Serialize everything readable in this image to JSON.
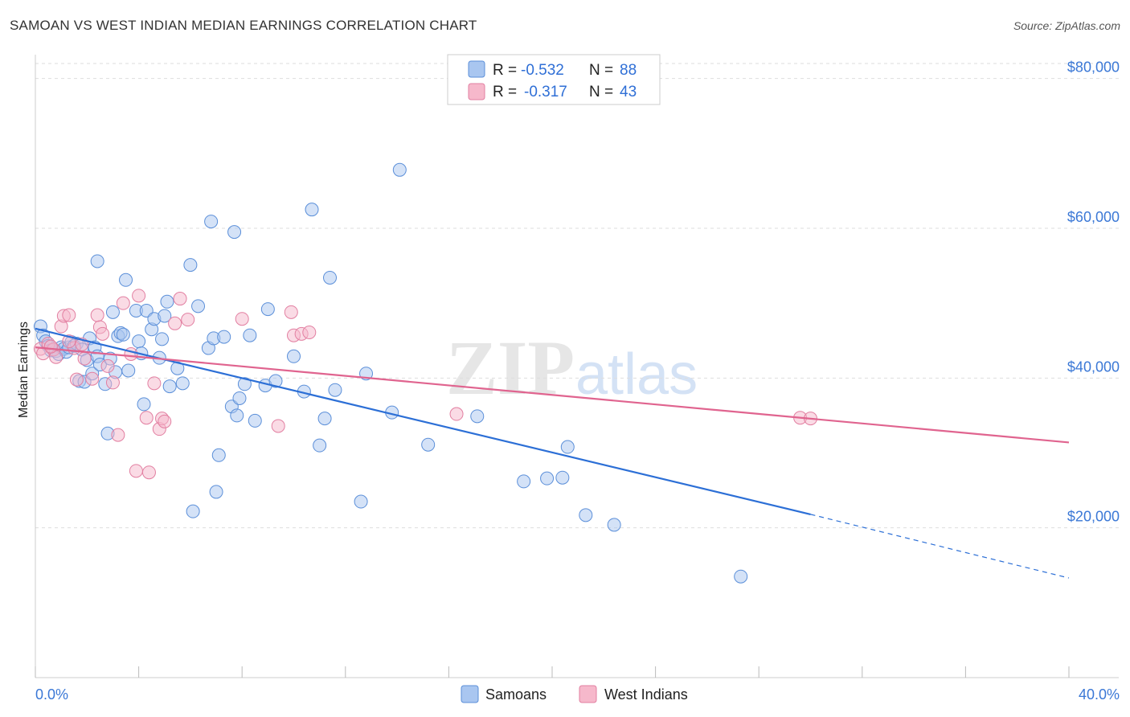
{
  "header": {
    "title": "SAMOAN VS WEST INDIAN MEDIAN EARNINGS CORRELATION CHART",
    "source": "Source: ZipAtlas.com"
  },
  "watermark": {
    "zip": "ZIP",
    "atlas": "atlas"
  },
  "legend": {
    "rows": [
      {
        "r_label": "R =",
        "r_value": "-0.532",
        "n_label": "N =",
        "n_value": "88"
      },
      {
        "r_label": "R =",
        "r_value": "-0.317",
        "n_label": "N =",
        "n_value": "43"
      }
    ]
  },
  "bottom_legend": {
    "items": [
      "Samoans",
      "West Indians"
    ]
  },
  "colors": {
    "samoans_fill": "#a9c6f0",
    "samoans_stroke": "#5b8fd9",
    "samoans_line": "#2c6fd6",
    "westindians_fill": "#f6b8cb",
    "westindians_stroke": "#e27fa1",
    "westindians_line": "#e0648f",
    "tick_text": "#3b78d6",
    "grid": "#dddddd"
  },
  "chart_data": {
    "type": "scatter",
    "title": "SAMOAN VS WEST INDIAN MEDIAN EARNINGS CORRELATION CHART",
    "xlabel": "",
    "ylabel": "Median Earnings",
    "xlim": [
      0,
      40
    ],
    "ylim": [
      0,
      82000
    ],
    "x_tick_labels": [
      "0.0%",
      "40.0%"
    ],
    "y_ticks": [
      {
        "value": 20000,
        "label": "$20,000"
      },
      {
        "value": 40000,
        "label": "$40,000"
      },
      {
        "value": 60000,
        "label": "$60,000"
      },
      {
        "value": 80000,
        "label": "$80,000"
      }
    ],
    "grid": true,
    "legend_position": "top-center",
    "series": [
      {
        "name": "Samoans",
        "color": "#a9c6f0",
        "trend": {
          "x": [
            0,
            30
          ],
          "y": [
            46600,
            21800
          ],
          "dashed_to": [
            40,
            13300
          ]
        },
        "points": [
          [
            0.2,
            46900
          ],
          [
            0.3,
            45700
          ],
          [
            0.4,
            44900
          ],
          [
            0.5,
            44300
          ],
          [
            0.6,
            43700
          ],
          [
            0.8,
            43600
          ],
          [
            0.9,
            43200
          ],
          [
            1.0,
            44100
          ],
          [
            1.1,
            43900
          ],
          [
            1.2,
            43500
          ],
          [
            1.3,
            44100
          ],
          [
            1.4,
            44800
          ],
          [
            1.5,
            44300
          ],
          [
            1.6,
            44600
          ],
          [
            1.7,
            39600
          ],
          [
            1.8,
            43800
          ],
          [
            1.9,
            39500
          ],
          [
            2.0,
            42400
          ],
          [
            2.1,
            45300
          ],
          [
            2.2,
            40600
          ],
          [
            2.3,
            44100
          ],
          [
            2.4,
            42900
          ],
          [
            2.5,
            41800
          ],
          [
            2.4,
            55600
          ],
          [
            2.7,
            39200
          ],
          [
            2.8,
            32600
          ],
          [
            2.9,
            42600
          ],
          [
            3.0,
            48800
          ],
          [
            3.1,
            40800
          ],
          [
            3.2,
            45600
          ],
          [
            3.3,
            46000
          ],
          [
            3.4,
            45800
          ],
          [
            3.5,
            53100
          ],
          [
            3.6,
            41000
          ],
          [
            3.9,
            49000
          ],
          [
            4.0,
            44900
          ],
          [
            4.1,
            43300
          ],
          [
            4.2,
            36500
          ],
          [
            4.3,
            49000
          ],
          [
            4.5,
            46500
          ],
          [
            4.6,
            47900
          ],
          [
            4.8,
            42700
          ],
          [
            4.9,
            45200
          ],
          [
            5.0,
            48300
          ],
          [
            5.1,
            50200
          ],
          [
            5.2,
            38900
          ],
          [
            5.5,
            41300
          ],
          [
            5.7,
            39300
          ],
          [
            6.0,
            55100
          ],
          [
            6.1,
            22200
          ],
          [
            6.3,
            49600
          ],
          [
            6.7,
            44000
          ],
          [
            6.8,
            60900
          ],
          [
            6.9,
            45300
          ],
          [
            7.0,
            24800
          ],
          [
            7.1,
            29700
          ],
          [
            7.3,
            45500
          ],
          [
            7.6,
            36200
          ],
          [
            7.7,
            59500
          ],
          [
            7.8,
            35000
          ],
          [
            7.9,
            37300
          ],
          [
            8.1,
            39200
          ],
          [
            8.3,
            45700
          ],
          [
            8.5,
            34300
          ],
          [
            8.9,
            39000
          ],
          [
            9.0,
            49200
          ],
          [
            9.3,
            39600
          ],
          [
            10.0,
            42900
          ],
          [
            10.4,
            38200
          ],
          [
            10.7,
            62500
          ],
          [
            11.0,
            31000
          ],
          [
            11.2,
            34600
          ],
          [
            11.4,
            53400
          ],
          [
            11.6,
            38400
          ],
          [
            12.6,
            23500
          ],
          [
            12.8,
            40600
          ],
          [
            13.8,
            35400
          ],
          [
            14.1,
            67800
          ],
          [
            15.2,
            31100
          ],
          [
            17.1,
            34900
          ],
          [
            18.9,
            26200
          ],
          [
            19.8,
            26600
          ],
          [
            20.4,
            26700
          ],
          [
            20.6,
            30800
          ],
          [
            21.3,
            21700
          ],
          [
            22.4,
            20400
          ],
          [
            27.3,
            13500
          ],
          [
            0.7,
            43800
          ]
        ]
      },
      {
        "name": "West Indians",
        "color": "#f6b8cb",
        "trend": {
          "x": [
            0,
            40
          ],
          "y": [
            44100,
            31400
          ]
        },
        "points": [
          [
            0.2,
            43900
          ],
          [
            0.3,
            43300
          ],
          [
            0.5,
            44600
          ],
          [
            0.7,
            43800
          ],
          [
            0.8,
            42800
          ],
          [
            1.0,
            46900
          ],
          [
            1.1,
            48300
          ],
          [
            1.3,
            48400
          ],
          [
            1.5,
            44000
          ],
          [
            1.6,
            39800
          ],
          [
            1.8,
            44500
          ],
          [
            1.9,
            42600
          ],
          [
            2.2,
            39900
          ],
          [
            2.4,
            48400
          ],
          [
            2.5,
            46800
          ],
          [
            2.6,
            45900
          ],
          [
            2.8,
            41600
          ],
          [
            3.0,
            39400
          ],
          [
            3.2,
            32400
          ],
          [
            3.4,
            50000
          ],
          [
            3.7,
            43200
          ],
          [
            3.9,
            27600
          ],
          [
            4.0,
            51000
          ],
          [
            4.3,
            34700
          ],
          [
            4.4,
            27400
          ],
          [
            4.6,
            39300
          ],
          [
            4.8,
            33200
          ],
          [
            4.9,
            34600
          ],
          [
            5.0,
            34200
          ],
          [
            5.4,
            47300
          ],
          [
            5.6,
            50600
          ],
          [
            5.9,
            47800
          ],
          [
            8.0,
            47900
          ],
          [
            9.4,
            33600
          ],
          [
            9.9,
            48800
          ],
          [
            10.0,
            45700
          ],
          [
            10.3,
            45900
          ],
          [
            10.6,
            46100
          ],
          [
            16.3,
            35200
          ],
          [
            29.6,
            34700
          ],
          [
            30.0,
            34600
          ],
          [
            1.3,
            44900
          ],
          [
            0.6,
            44200
          ]
        ]
      }
    ]
  }
}
